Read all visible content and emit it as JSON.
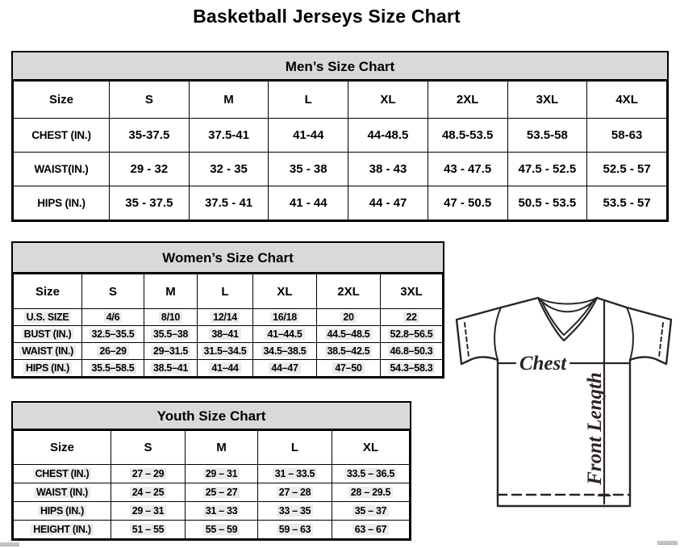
{
  "page": {
    "title": "Basketball Jerseys Size Chart"
  },
  "tables": {
    "men": {
      "title": "Men’s Size Chart",
      "columns": [
        "Size",
        "S",
        "M",
        "L",
        "XL",
        "2XL",
        "3XL",
        "4XL"
      ],
      "rows": [
        {
          "label": "CHEST (IN.)",
          "values": [
            "35-37.5",
            "37.5-41",
            "41-44",
            "44-48.5",
            "48.5-53.5",
            "53.5-58",
            "58-63"
          ]
        },
        {
          "label": "WAIST(IN.)",
          "values": [
            "29 - 32",
            "32 - 35",
            "35 - 38",
            "38 - 43",
            "43 - 47.5",
            "47.5 - 52.5",
            "52.5 - 57"
          ]
        },
        {
          "label": "HIPS (IN.)",
          "values": [
            "35 - 37.5",
            "37.5 - 41",
            "41 - 44",
            "44 - 47",
            "47 - 50.5",
            "50.5 - 53.5",
            "53.5 - 57"
          ]
        }
      ]
    },
    "women": {
      "title": "Women’s Size Chart",
      "columns": [
        "Size",
        "S",
        "M",
        "L",
        "XL",
        "2XL",
        "3XL"
      ],
      "rows": [
        {
          "label": "U.S. SIZE",
          "values": [
            "4/6",
            "8/10",
            "12/14",
            "16/18",
            "20",
            "22"
          ]
        },
        {
          "label": "BUST (IN.)",
          "values": [
            "32.5–35.5",
            "35.5–38",
            "38–41",
            "41–44.5",
            "44.5–48.5",
            "52.8–56.5"
          ]
        },
        {
          "label": "WAIST (IN.)",
          "values": [
            "26–29",
            "29–31.5",
            "31.5–34.5",
            "34.5–38.5",
            "38.5–42.5",
            "46.8–50.3"
          ]
        },
        {
          "label": "HIPS (IN.)",
          "values": [
            "35.5–58.5",
            "38.5–41",
            "41–44",
            "44–47",
            "47–50",
            "54.3–58.3"
          ]
        }
      ]
    },
    "youth": {
      "title": "Youth Size Chart",
      "columns": [
        "Size",
        "S",
        "M",
        "L",
        "XL"
      ],
      "rows": [
        {
          "label": "CHEST (IN.)",
          "values": [
            "27 – 29",
            "29 – 31",
            "31 – 33.5",
            "33.5 – 36.5"
          ]
        },
        {
          "label": "WAIST (IN.)",
          "values": [
            "24 – 25",
            "25 – 27",
            "27 – 28",
            "28 – 29.5"
          ]
        },
        {
          "label": "HIPS (IN.)",
          "values": [
            "29 – 31",
            "31 – 33",
            "33 – 35",
            "35 – 37"
          ]
        },
        {
          "label": "HEIGHT (IN.)",
          "values": [
            "51 – 55",
            "55 – 59",
            "59 – 63",
            "63 – 67"
          ]
        }
      ]
    }
  },
  "diagram": {
    "chest_label": "Chest",
    "front_length_label": "Front Length",
    "stroke_color": "#2b2422"
  },
  "colors": {
    "table_header_bg": "#d9d9d9",
    "border": "#000000",
    "value_highlight": "#ebebeb"
  }
}
